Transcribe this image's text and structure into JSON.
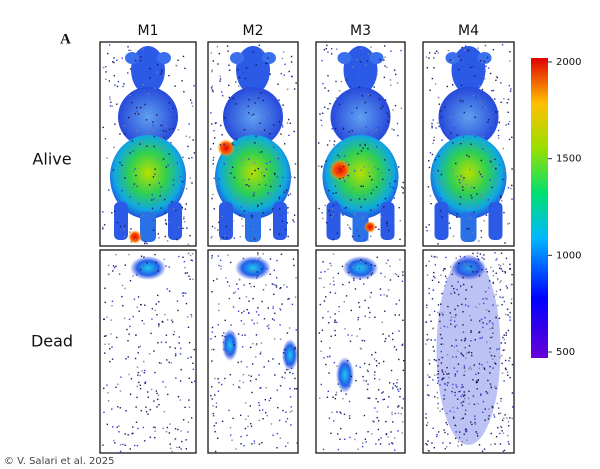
{
  "figure": {
    "panel_label": "A",
    "columns": [
      "M1",
      "M2",
      "M3",
      "M4"
    ],
    "rows": [
      "Alive",
      "Dead"
    ],
    "colorbar": {
      "range": [
        500,
        2000
      ],
      "ticks": [
        500,
        1000,
        1500,
        2000
      ]
    },
    "credit": "© V. Salari et al. 2025"
  }
}
